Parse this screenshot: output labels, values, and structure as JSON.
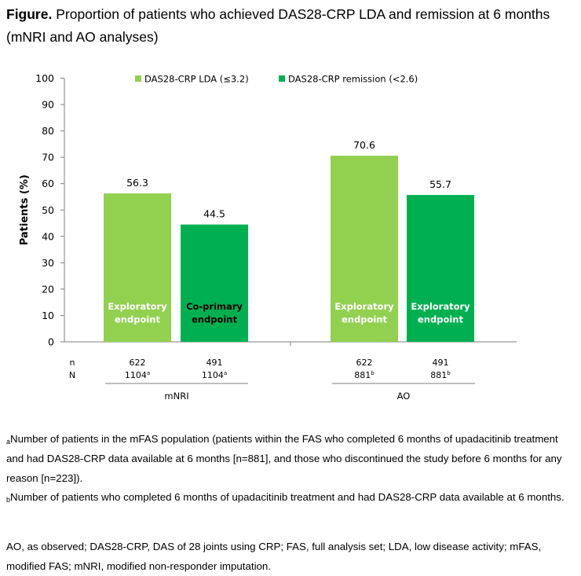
{
  "title": {
    "prefix": "Figure.",
    "text": "Proportion of patients who achieved DAS28-CRP LDA and remission at 6 months (mNRI and AO analyses)"
  },
  "colors": {
    "lda": "#92d050",
    "remission": "#00b050"
  },
  "chart_data": {
    "type": "bar",
    "ylabel": "Patients (%)",
    "ylim": [
      0,
      100
    ],
    "yticks": [
      0,
      10,
      20,
      30,
      40,
      50,
      60,
      70,
      80,
      90,
      100
    ],
    "legend": [
      {
        "name": "DAS28-CRP LDA (≤3.2)",
        "color": "#92d050"
      },
      {
        "name": "DAS28-CRP remission (<2.6)",
        "color": "#00b050"
      }
    ],
    "legend_position": "top",
    "groups": [
      {
        "label": "mNRI",
        "bars": [
          {
            "series": "DAS28-CRP LDA (≤3.2)",
            "value": 56.3,
            "value_label": "56.3",
            "inner_label": [
              "Exploratory",
              "endpoint"
            ],
            "n": "622",
            "N": "1104",
            "N_sup": "a"
          },
          {
            "series": "DAS28-CRP remission (<2.6)",
            "value": 44.5,
            "value_label": "44.5",
            "inner_label": [
              "Co-primary",
              "endpoint"
            ],
            "n": "491",
            "N": "1104",
            "N_sup": "a"
          }
        ]
      },
      {
        "label": "AO",
        "bars": [
          {
            "series": "DAS28-CRP LDA (≤3.2)",
            "value": 70.6,
            "value_label": "70.6",
            "inner_label": [
              "Exploratory",
              "endpoint"
            ],
            "n": "622",
            "N": "881",
            "N_sup": "b"
          },
          {
            "series": "DAS28-CRP remission (<2.6)",
            "value": 55.7,
            "value_label": "55.7",
            "inner_label": [
              "Exploratory",
              "endpoint"
            ],
            "n": "491",
            "N": "881",
            "N_sup": "b"
          }
        ]
      }
    ],
    "row_labels": [
      "n",
      "N"
    ]
  },
  "footnotes": {
    "a_sup": "a",
    "a_text": "Number of patients in the mFAS population (patients within the FAS who completed 6 months of upadacitinib treatment and had DAS28-CRP data available at 6 months [n=881], and those who discontinued the study before 6 months for any reason [n=223]).",
    "b_sup": "b",
    "b_text": "Number of patients who completed 6 months of upadacitinib treatment and had DAS28-CRP data available at 6 months.",
    "abbrev": "AO, as observed; DAS28-CRP, DAS of 28 joints using CRP; FAS, full analysis set; LDA, low disease activity; mFAS, modified FAS; mNRI, modified non-responder imputation."
  }
}
